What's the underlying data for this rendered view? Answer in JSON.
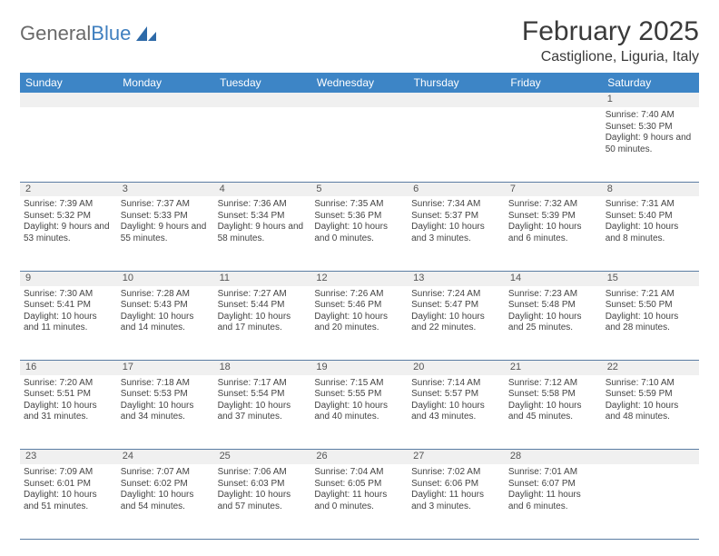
{
  "logo": {
    "text1": "General",
    "text2": "Blue"
  },
  "title": {
    "month": "February 2025",
    "location": "Castiglione, Liguria, Italy"
  },
  "colors": {
    "header_bg": "#3d85c6",
    "header_text": "#ffffff",
    "daynum_bg": "#f0f0f0",
    "rule": "#5b7da3",
    "logo_gray": "#6a6a6a",
    "logo_blue": "#3f7fbf"
  },
  "weekdays": [
    "Sunday",
    "Monday",
    "Tuesday",
    "Wednesday",
    "Thursday",
    "Friday",
    "Saturday"
  ],
  "weeks": [
    [
      null,
      null,
      null,
      null,
      null,
      null,
      {
        "n": "1",
        "sr": "Sunrise: 7:40 AM",
        "ss": "Sunset: 5:30 PM",
        "dl": "Daylight: 9 hours and 50 minutes."
      }
    ],
    [
      {
        "n": "2",
        "sr": "Sunrise: 7:39 AM",
        "ss": "Sunset: 5:32 PM",
        "dl": "Daylight: 9 hours and 53 minutes."
      },
      {
        "n": "3",
        "sr": "Sunrise: 7:37 AM",
        "ss": "Sunset: 5:33 PM",
        "dl": "Daylight: 9 hours and 55 minutes."
      },
      {
        "n": "4",
        "sr": "Sunrise: 7:36 AM",
        "ss": "Sunset: 5:34 PM",
        "dl": "Daylight: 9 hours and 58 minutes."
      },
      {
        "n": "5",
        "sr": "Sunrise: 7:35 AM",
        "ss": "Sunset: 5:36 PM",
        "dl": "Daylight: 10 hours and 0 minutes."
      },
      {
        "n": "6",
        "sr": "Sunrise: 7:34 AM",
        "ss": "Sunset: 5:37 PM",
        "dl": "Daylight: 10 hours and 3 minutes."
      },
      {
        "n": "7",
        "sr": "Sunrise: 7:32 AM",
        "ss": "Sunset: 5:39 PM",
        "dl": "Daylight: 10 hours and 6 minutes."
      },
      {
        "n": "8",
        "sr": "Sunrise: 7:31 AM",
        "ss": "Sunset: 5:40 PM",
        "dl": "Daylight: 10 hours and 8 minutes."
      }
    ],
    [
      {
        "n": "9",
        "sr": "Sunrise: 7:30 AM",
        "ss": "Sunset: 5:41 PM",
        "dl": "Daylight: 10 hours and 11 minutes."
      },
      {
        "n": "10",
        "sr": "Sunrise: 7:28 AM",
        "ss": "Sunset: 5:43 PM",
        "dl": "Daylight: 10 hours and 14 minutes."
      },
      {
        "n": "11",
        "sr": "Sunrise: 7:27 AM",
        "ss": "Sunset: 5:44 PM",
        "dl": "Daylight: 10 hours and 17 minutes."
      },
      {
        "n": "12",
        "sr": "Sunrise: 7:26 AM",
        "ss": "Sunset: 5:46 PM",
        "dl": "Daylight: 10 hours and 20 minutes."
      },
      {
        "n": "13",
        "sr": "Sunrise: 7:24 AM",
        "ss": "Sunset: 5:47 PM",
        "dl": "Daylight: 10 hours and 22 minutes."
      },
      {
        "n": "14",
        "sr": "Sunrise: 7:23 AM",
        "ss": "Sunset: 5:48 PM",
        "dl": "Daylight: 10 hours and 25 minutes."
      },
      {
        "n": "15",
        "sr": "Sunrise: 7:21 AM",
        "ss": "Sunset: 5:50 PM",
        "dl": "Daylight: 10 hours and 28 minutes."
      }
    ],
    [
      {
        "n": "16",
        "sr": "Sunrise: 7:20 AM",
        "ss": "Sunset: 5:51 PM",
        "dl": "Daylight: 10 hours and 31 minutes."
      },
      {
        "n": "17",
        "sr": "Sunrise: 7:18 AM",
        "ss": "Sunset: 5:53 PM",
        "dl": "Daylight: 10 hours and 34 minutes."
      },
      {
        "n": "18",
        "sr": "Sunrise: 7:17 AM",
        "ss": "Sunset: 5:54 PM",
        "dl": "Daylight: 10 hours and 37 minutes."
      },
      {
        "n": "19",
        "sr": "Sunrise: 7:15 AM",
        "ss": "Sunset: 5:55 PM",
        "dl": "Daylight: 10 hours and 40 minutes."
      },
      {
        "n": "20",
        "sr": "Sunrise: 7:14 AM",
        "ss": "Sunset: 5:57 PM",
        "dl": "Daylight: 10 hours and 43 minutes."
      },
      {
        "n": "21",
        "sr": "Sunrise: 7:12 AM",
        "ss": "Sunset: 5:58 PM",
        "dl": "Daylight: 10 hours and 45 minutes."
      },
      {
        "n": "22",
        "sr": "Sunrise: 7:10 AM",
        "ss": "Sunset: 5:59 PM",
        "dl": "Daylight: 10 hours and 48 minutes."
      }
    ],
    [
      {
        "n": "23",
        "sr": "Sunrise: 7:09 AM",
        "ss": "Sunset: 6:01 PM",
        "dl": "Daylight: 10 hours and 51 minutes."
      },
      {
        "n": "24",
        "sr": "Sunrise: 7:07 AM",
        "ss": "Sunset: 6:02 PM",
        "dl": "Daylight: 10 hours and 54 minutes."
      },
      {
        "n": "25",
        "sr": "Sunrise: 7:06 AM",
        "ss": "Sunset: 6:03 PM",
        "dl": "Daylight: 10 hours and 57 minutes."
      },
      {
        "n": "26",
        "sr": "Sunrise: 7:04 AM",
        "ss": "Sunset: 6:05 PM",
        "dl": "Daylight: 11 hours and 0 minutes."
      },
      {
        "n": "27",
        "sr": "Sunrise: 7:02 AM",
        "ss": "Sunset: 6:06 PM",
        "dl": "Daylight: 11 hours and 3 minutes."
      },
      {
        "n": "28",
        "sr": "Sunrise: 7:01 AM",
        "ss": "Sunset: 6:07 PM",
        "dl": "Daylight: 11 hours and 6 minutes."
      },
      null
    ]
  ]
}
